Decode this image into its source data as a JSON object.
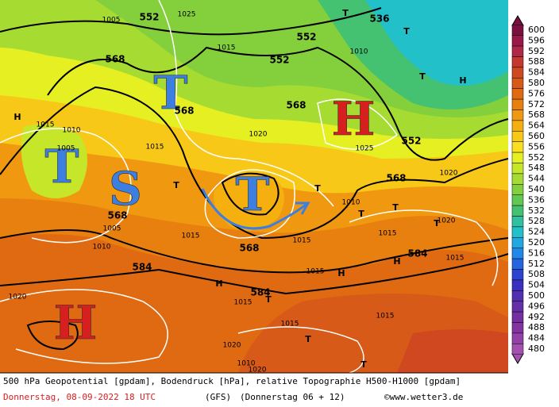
{
  "map": {
    "big_labels": [
      {
        "text": "T",
        "color": "#3d7fe0"
      },
      {
        "text": "T",
        "color": "#3d7fe0"
      },
      {
        "text": "S",
        "color": "#3d7fe0"
      },
      {
        "text": "T",
        "color": "#3d7fe0"
      },
      {
        "text": "H",
        "color": "#d62020"
      },
      {
        "text": "H",
        "color": "#d62020"
      }
    ],
    "contour_labels": [
      552,
      536,
      552,
      552,
      568,
      568,
      552,
      568,
      568,
      584,
      584,
      584,
      568,
      568
    ],
    "pressure_labels": [
      1005,
      1025,
      1015,
      1010,
      1015,
      1020,
      1010,
      1015,
      1005,
      1005,
      1010,
      1015,
      1020,
      1010,
      1015,
      1015,
      1020,
      1015,
      1020,
      1015,
      1015,
      1020,
      1015,
      1010,
      1025,
      1020,
      1015
    ],
    "markers": [
      "T",
      "T",
      "T",
      "H",
      "H",
      "T",
      "H",
      "T",
      "T",
      "H",
      "T",
      "T",
      "H",
      "T",
      "T",
      "T"
    ]
  },
  "legend": {
    "ticks": [
      600,
      596,
      592,
      588,
      584,
      580,
      576,
      572,
      568,
      564,
      560,
      556,
      552,
      548,
      544,
      540,
      536,
      532,
      528,
      524,
      520,
      516,
      512,
      508,
      504,
      500,
      496,
      492,
      488,
      484,
      480
    ],
    "colors": [
      "#7a1040",
      "#9a1848",
      "#b02848",
      "#c43830",
      "#d04820",
      "#d85a18",
      "#e06a12",
      "#e88010",
      "#f09810",
      "#f5b010",
      "#f8c818",
      "#f8e020",
      "#e6ef22",
      "#c6e62a",
      "#a6dc32",
      "#84d03c",
      "#62c852",
      "#44c272",
      "#30c2a0",
      "#22c0c8",
      "#20a8e0",
      "#2088e8",
      "#2464e0",
      "#2c44d0",
      "#3a30c0",
      "#5230b0",
      "#6430a8",
      "#7430a0",
      "#8434a0",
      "#9440a8",
      "#a450b0"
    ]
  },
  "footer": {
    "line1": "500 hPa Geopotential [gpdam], Bodendruck [hPa], relative Topographie H500-H1000 [gpdam]",
    "date": "Donnerstag, 08-09-2022  18 UTC",
    "model": "(GFS)",
    "run": "(Donnerstag 06 + 12)",
    "credit": "©www.wetter3.de"
  }
}
